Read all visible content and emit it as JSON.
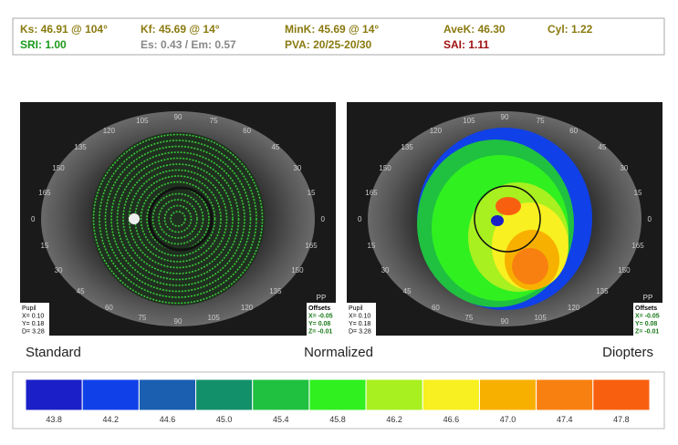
{
  "info": {
    "row1": [
      "Ks: 46.91 @ 104°",
      "Kf: 45.69 @ 14°",
      "MinK: 45.69 @ 14°",
      "AveK: 46.30",
      "Cyl: 1.22"
    ],
    "row2": [
      "SRI: 1.00",
      "Es: 0.43 / Em: 0.57",
      "PVA: 20/25-20/30",
      "SAI: 1.11"
    ]
  },
  "ring_labels": [
    "0",
    "15",
    "30",
    "45",
    "60",
    "75",
    "90",
    "105",
    "120",
    "135",
    "150",
    "165"
  ],
  "pupil": [
    "Pupil",
    "X= 0.10",
    "Y= 0.18",
    "D= 3.28"
  ],
  "offsets": [
    "Offsets",
    "X= -0.05",
    "Y= 0.08",
    "Z= -0.01"
  ],
  "pp": "PP",
  "captions": [
    "Standard",
    "Normalized",
    "Diopters"
  ],
  "scale": {
    "labels": [
      "43.8",
      "44.2",
      "44.6",
      "45.0",
      "45.4",
      "45.8",
      "46.2",
      "46.6",
      "47.0",
      "47.4",
      "47.8"
    ],
    "colors": [
      "#1a1fc8",
      "#1040e8",
      "#1a5fb0",
      "#12906a",
      "#20c040",
      "#30f020",
      "#a8f020",
      "#f8f020",
      "#f8b000",
      "#f88010",
      "#f86010"
    ]
  }
}
